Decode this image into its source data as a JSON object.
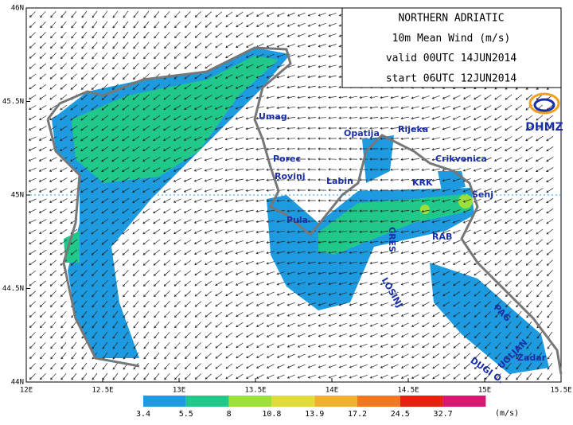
{
  "map": {
    "title_lines": [
      "NORTHERN ADRIATIC",
      "10m Mean Wind (m/s)",
      "valid 00UTC 14JUN2014",
      "start 06UTC 12JUN2014"
    ],
    "logo": "DHMZ",
    "xlim": [
      12,
      15.5
    ],
    "ylim": [
      44,
      46
    ],
    "lon_ticks": [
      {
        "value": 12,
        "label": "12E"
      },
      {
        "value": 12.5,
        "label": "12.5E"
      },
      {
        "value": 13,
        "label": "13E"
      },
      {
        "value": 13.5,
        "label": "13.5E"
      },
      {
        "value": 14,
        "label": "14E"
      },
      {
        "value": 14.5,
        "label": "14.5E"
      },
      {
        "value": 15,
        "label": "15E"
      },
      {
        "value": 15.5,
        "label": "15.5E"
      }
    ],
    "lat_ticks": [
      {
        "value": 44,
        "label": "44N"
      },
      {
        "value": 44.5,
        "label": "44.5N"
      },
      {
        "value": 45,
        "label": "45N"
      },
      {
        "value": 45.5,
        "label": "45.5N"
      },
      {
        "value": 46,
        "label": "46N"
      }
    ],
    "places": [
      "Umag",
      "Porec",
      "Rovinj",
      "Pula",
      "Labin",
      "Opatija",
      "Rijeka",
      "Crikvenica",
      "KRK",
      "Senj",
      "RAB",
      "CRES",
      "LOSINJ",
      "PAG",
      "Zadar",
      "UGLJAN",
      "DUGI O."
    ],
    "colorbar": {
      "levels": [
        3.4,
        5.5,
        8,
        10.8,
        13.9,
        17.2,
        24.5,
        32.7
      ],
      "colors": [
        "#1e9be0",
        "#20c98a",
        "#9ee03a",
        "#e0dc3a",
        "#f0b030",
        "#f07820",
        "#e82010",
        "#d81870"
      ],
      "unit": "(m/s)"
    }
  }
}
